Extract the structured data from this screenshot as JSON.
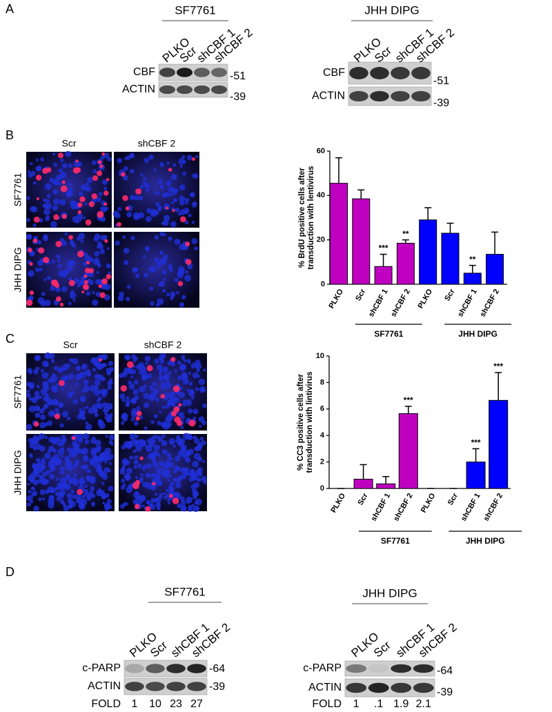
{
  "panel_labels": [
    "A",
    "B",
    "C",
    "D"
  ],
  "panel_a": {
    "left": {
      "title": "SF7761",
      "lanes": [
        "PLKO",
        "Scr",
        "shCBF 1",
        "shCBF 2"
      ],
      "rows": [
        "CBF",
        "ACTIN"
      ],
      "markers": [
        "-51",
        "-39"
      ]
    },
    "right": {
      "title": "JHH DIPG",
      "lanes": [
        "PLKO",
        "Scr",
        "shCBF 1",
        "shCBF 2"
      ],
      "rows": [
        "CBF",
        "ACTIN"
      ],
      "markers": [
        "-51",
        "-39"
      ]
    }
  },
  "panel_b_images": {
    "columns": [
      "Scr",
      "shCBF 2"
    ],
    "rows": [
      "SF7761",
      "JHH DIPG"
    ]
  },
  "panel_c_images": {
    "columns": [
      "Scr",
      "shCBF 2"
    ],
    "rows": [
      "SF7761",
      "JHH DIPG"
    ]
  },
  "panel_d": {
    "left": {
      "title": "SF7761",
      "lanes": [
        "PLKO",
        "Scr",
        "shCBF 1",
        "shCBF 2"
      ],
      "rows": [
        "c-PARP",
        "ACTIN",
        "FOLD"
      ],
      "markers": [
        "-64",
        "-39"
      ],
      "fold": [
        "1",
        "10",
        "23",
        "27"
      ]
    },
    "right": {
      "title": "JHH DIPG",
      "lanes": [
        "PLKO",
        "Scr",
        "shCBF 1",
        "shCBF 2"
      ],
      "rows": [
        "c-PARP",
        "ACTIN",
        "FOLD"
      ],
      "markers": [
        "-64",
        "-39"
      ],
      "fold": [
        "1",
        ".1",
        "1.9",
        "2.1"
      ]
    }
  },
  "chart_data": [
    {
      "type": "bar",
      "ylabel": [
        "% BrdU positive cells after",
        "transduction with lentivirus"
      ],
      "categories": [
        "PLKO",
        "Scr",
        "shCBF 1",
        "shCBF 2",
        "PLKO",
        "Scr",
        "shCBF 1",
        "shCBF 2"
      ],
      "groups": [
        "SF7761",
        "JHH DIPG"
      ],
      "values": [
        45.5,
        38.5,
        8,
        18.5,
        29,
        23,
        5,
        13.5
      ],
      "errors": [
        11.5,
        4,
        5.5,
        1.5,
        5.5,
        4.5,
        3.5,
        10
      ],
      "annotations": [
        null,
        null,
        "***",
        "**",
        null,
        null,
        "**",
        null
      ],
      "colors": [
        "#c000c0",
        "#c000c0",
        "#c000c0",
        "#c000c0",
        "#0000ff",
        "#0000ff",
        "#0000ff",
        "#0000ff"
      ],
      "ylim": [
        0,
        60
      ],
      "yticks": [
        0,
        20,
        40,
        60
      ],
      "grid": false
    },
    {
      "type": "bar",
      "ylabel": [
        "% CC3 positive cells after",
        "transduction with lintivirus"
      ],
      "categories": [
        "PLKO",
        "Scr",
        "shCBF 1",
        "shCBF 2",
        "PLKO",
        "Scr",
        "shCBF 1",
        "shCBF 2"
      ],
      "groups": [
        "SF7761",
        "JHH DIPG"
      ],
      "values": [
        0,
        0.7,
        0.35,
        5.65,
        0,
        0,
        2,
        6.65
      ],
      "errors": [
        0,
        1.1,
        0.55,
        0.55,
        0,
        0,
        1,
        2.1
      ],
      "annotations": [
        null,
        null,
        null,
        "***",
        null,
        null,
        "***",
        "***"
      ],
      "colors": [
        "#c000c0",
        "#c000c0",
        "#c000c0",
        "#c000c0",
        "#0000ff",
        "#0000ff",
        "#0000ff",
        "#0000ff"
      ],
      "ylim": [
        0,
        10
      ],
      "yticks": [
        0,
        2,
        4,
        6,
        8,
        10
      ],
      "grid": false
    }
  ]
}
